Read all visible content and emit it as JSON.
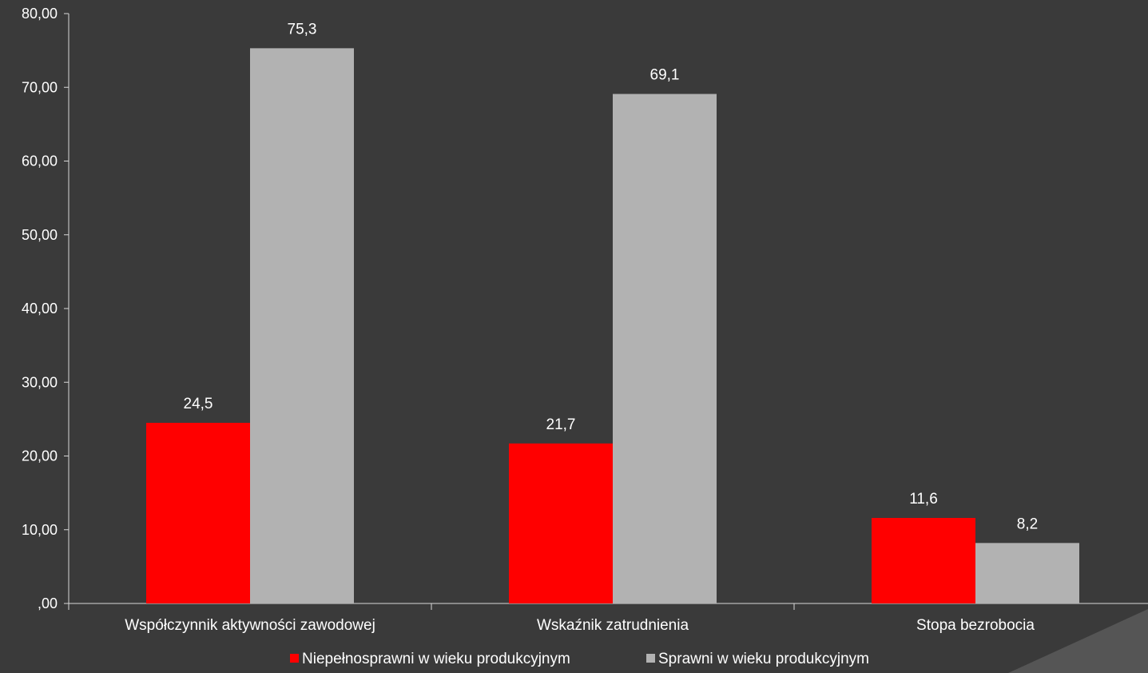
{
  "chart_data": {
    "type": "bar",
    "categories": [
      "Współczynnik aktywności zawodowej",
      "Wskaźnik zatrudnienia",
      "Stopa bezrobocia"
    ],
    "series": [
      {
        "name": "Niepełnosprawni w wieku produkcyjnym",
        "values": [
          24.5,
          21.7,
          11.6
        ],
        "labels": [
          "24,5",
          "21,7",
          "11,6"
        ],
        "color": "#ff0000"
      },
      {
        "name": "Sprawni w wieku produkcyjnym",
        "values": [
          75.3,
          69.1,
          8.2
        ],
        "labels": [
          "75,3",
          "69,1",
          "8,2"
        ],
        "color": "#b2b2b2"
      }
    ],
    "ylim": [
      0,
      80
    ],
    "yticks": [
      0,
      10,
      20,
      30,
      40,
      50,
      60,
      70,
      80
    ],
    "ytick_labels": [
      ",00",
      "10,00",
      "20,00",
      "30,00",
      "40,00",
      "50,00",
      "60,00",
      "70,00",
      "80,00"
    ],
    "title": "",
    "xlabel": "",
    "ylabel": "",
    "grid": false,
    "legend_position": "bottom"
  },
  "colors": {
    "background": "#3a3a3a",
    "axis": "#d8d8d8",
    "text": "#ffffff",
    "corner_decoration": "#555555"
  }
}
